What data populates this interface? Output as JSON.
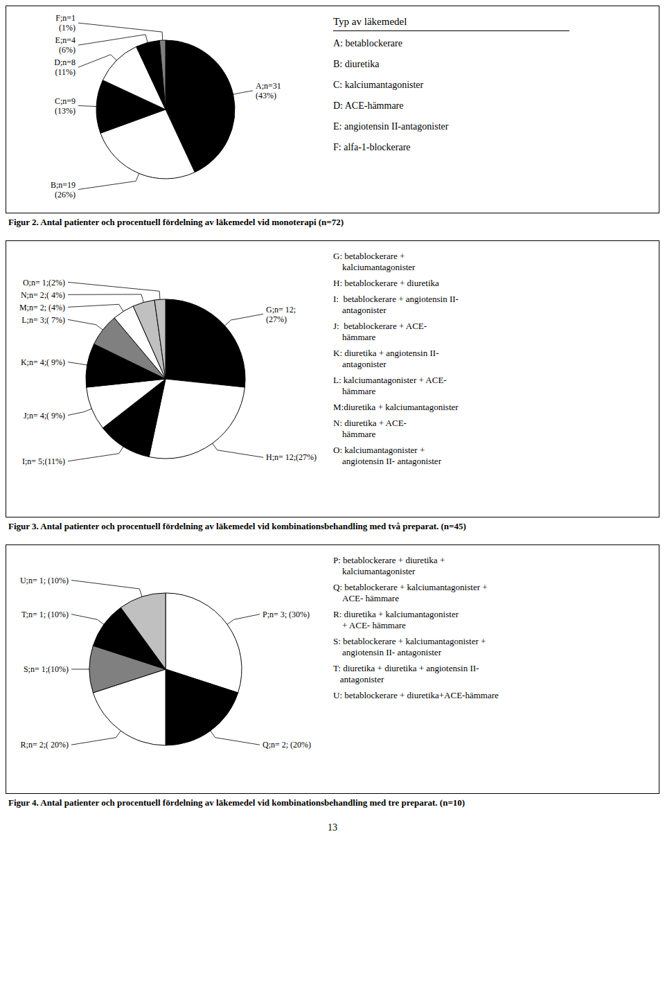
{
  "chart_data": [
    {
      "type": "pie",
      "title": "Figur 2. Antal patienter och procentuell fördelning av läkemedel vid monoterapi (n=72)",
      "subtitle": "Typ av läkemedel",
      "values": [
        31,
        19,
        9,
        8,
        4,
        1
      ],
      "value_labels": [
        "A;n=31\n(43%)",
        "B;n=19\n(26%)",
        "C;n=9\n(13%)",
        "D;n=8\n(11%)",
        "E;n=4\n(6%)",
        "F;n=1\n(1%)"
      ],
      "colors": [
        "#000000",
        "#ffffff",
        "#000000",
        "#ffffff",
        "#000000",
        "#808080"
      ],
      "annotations": [
        "A: betablockerare",
        "B: diuretika",
        "C: kalciumantagonister",
        "D: ACE-hämmare",
        "E: angiotensin II-antagonister",
        "F: alfa-1-blockerare"
      ]
    },
    {
      "type": "pie",
      "title": "Figur 3. Antal patienter och procentuell fördelning av läkemedel vid kombinationsbehandling med två preparat. (n=45)",
      "values": [
        12,
        12,
        5,
        4,
        4,
        3,
        2,
        2,
        1
      ],
      "value_labels": [
        "G;n= 12;\n(27%)",
        "H;n= 12;(27%)",
        "I;n= 5;(11%)",
        "J;n= 4;( 9%)",
        "K;n= 4;( 9%)",
        "L;n= 3;( 7%)",
        "M;n= 2; (4%)",
        "N;n= 2;( 4%)",
        "O;n= 1;(2%)"
      ],
      "colors": [
        "#000000",
        "#ffffff",
        "#000000",
        "#ffffff",
        "#000000",
        "#808080",
        "#ffffff",
        "#c0c0c0",
        "#c0c0c0"
      ],
      "annotations": [
        "G: betablockerare +\n    kalciumantagonister",
        "H: betablockerare + diuretika",
        "I:  betablockerare + angiotensin II-\n    antagonister",
        "J:  betablockerare + ACE-\n    hämmare",
        "K: diuretika + angiotensin II-\n    antagonister",
        "L: kalciumantagonister + ACE-\n    hämmare",
        "M:diuretika + kalciumantagonister",
        "N: diuretika + ACE-\n    hämmare",
        "O: kalciumantagonister +\n    angiotensin II- antagonister"
      ]
    },
    {
      "type": "pie",
      "title": "Figur 4. Antal patienter och procentuell fördelning av läkemedel vid kombinationsbehandling med tre preparat. (n=10)",
      "values": [
        3,
        2,
        2,
        1,
        1,
        1
      ],
      "value_labels": [
        "P;n= 3; (30%)",
        "Q;n= 2; (20%)",
        "R;n= 2;( 20%)",
        "S;n= 1;(10%)",
        "T;n= 1; (10%)",
        "U;n= 1; (10%)"
      ],
      "colors": [
        "#ffffff",
        "#000000",
        "#ffffff",
        "#808080",
        "#000000",
        "#c0c0c0"
      ],
      "annotations": [
        "P: betablockerare + diuretika +\n    kalciumantagonister",
        "Q: betablockerare + kalciumantagonister +\n    ACE- hämmare",
        "R: diuretika + kalciumantagonister\n    + ACE- hämmare",
        "S: betablockerare + kalciumantagonister +\n    angiotensin II- antagonister",
        "T: diuretika + diuretika + angiotensin II-\n   antagonister",
        "U: betablockerare + diuretika+ACE-hämmare"
      ]
    }
  ],
  "annotations": [
    "13"
  ]
}
